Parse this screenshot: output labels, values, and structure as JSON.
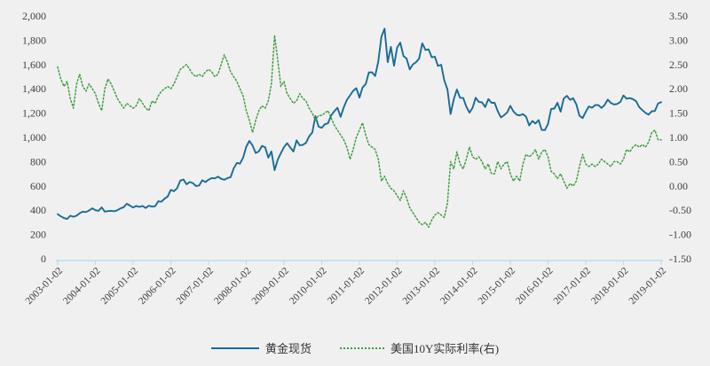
{
  "chart": {
    "background": "#f0f0f0",
    "text_color": "#404040",
    "axis_line_color": "#b5e0f2"
  },
  "legend": {
    "items": [
      {
        "label": "黄金现货",
        "color": "#186c96",
        "style": "solid"
      },
      {
        "label": "美国10Y实际利率(右)",
        "color": "#3f9e3f",
        "style": "dotted"
      }
    ]
  },
  "chart_data": {
    "type": "line",
    "title": "",
    "grid": false,
    "legend_position": "bottom-center",
    "left_axis": {
      "min": 0,
      "max": 2000,
      "step": 200,
      "tick_labels": [
        "0",
        "200",
        "400",
        "600",
        "800",
        "1,000",
        "1,200",
        "1,400",
        "1,600",
        "1,800",
        "2,000"
      ]
    },
    "right_axis": {
      "min": -1.5,
      "max": 3.5,
      "step": 0.5,
      "tick_labels": [
        "-1.50",
        "-1.00",
        "-0.50",
        "0.00",
        "0.50",
        "1.00",
        "1.50",
        "2.00",
        "2.50",
        "3.00",
        "3.50"
      ]
    },
    "x_axis": {
      "tick_labels": [
        "2003-01-02",
        "2004-01-02",
        "2005-01-02",
        "2006-01-02",
        "2007-01-02",
        "2008-01-02",
        "2009-01-02",
        "2010-01-02",
        "2011-01-02",
        "2012-01-02",
        "2013-01-02",
        "2014-01-02",
        "2015-01-02",
        "2016-01-02",
        "2017-01-02",
        "2018-01-02",
        "2019-01-02"
      ],
      "label_rotation_deg": -45
    },
    "sampling": "monthly 2003-01 to 2019-01",
    "series": [
      {
        "name": "黄金现货",
        "axis": "left",
        "color": "#186c96",
        "line": "solid",
        "values": [
          368,
          350,
          335,
          328,
          355,
          346,
          355,
          375,
          388,
          385,
          398,
          415,
          400,
          395,
          423,
          388,
          393,
          395,
          391,
          400,
          415,
          425,
          453,
          438,
          422,
          435,
          428,
          435,
          418,
          437,
          429,
          433,
          473,
          470,
          495,
          513,
          568,
          556,
          582,
          644,
          653,
          613,
          632,
          623,
          599,
          604,
          647,
          632,
          651,
          665,
          662,
          677,
          659,
          650,
          665,
          672,
          743,
          790,
          783,
          834,
          923,
          971,
          933,
          871,
          885,
          930,
          918,
          833,
          884,
          730,
          815,
          870,
          919,
          952,
          916,
          883,
          975,
          934,
          939,
          955,
          1008,
          1040,
          1175,
          1088,
          1078,
          1108,
          1116,
          1180,
          1215,
          1244,
          1169,
          1246,
          1307,
          1346,
          1383,
          1405,
          1327,
          1411,
          1439,
          1535,
          1536,
          1505,
          1628,
          1830,
          1895,
          1620,
          1745,
          1590,
          1740,
          1780,
          1670,
          1650,
          1560,
          1600,
          1620,
          1650,
          1775,
          1720,
          1725,
          1660,
          1664,
          1588,
          1598,
          1469,
          1394,
          1192,
          1314,
          1394,
          1326,
          1324,
          1253,
          1204,
          1244,
          1326,
          1291,
          1288,
          1250,
          1315,
          1285,
          1285,
          1216,
          1164,
          1182,
          1206,
          1260,
          1214,
          1187,
          1180,
          1191,
          1171,
          1098,
          1135,
          1114,
          1142,
          1061,
          1060,
          1111,
          1234,
          1237,
          1285,
          1212,
          1320,
          1342,
          1309,
          1322,
          1272,
          1178,
          1159,
          1210,
          1255,
          1244,
          1266,
          1266,
          1242,
          1267,
          1311,
          1283,
          1271,
          1275,
          1291,
          1345,
          1318,
          1323,
          1315,
          1298,
          1250,
          1224,
          1202,
          1187,
          1215,
          1217,
          1279,
          1290
        ]
      },
      {
        "name": "美国10Y实际利率(右)",
        "axis": "right",
        "color": "#3f9e3f",
        "line": "dotted",
        "values": [
          2.45,
          2.2,
          2.05,
          2.15,
          1.8,
          1.6,
          2.1,
          2.3,
          2.05,
          1.95,
          2.1,
          2.0,
          1.9,
          1.7,
          1.55,
          2.0,
          2.2,
          2.1,
          1.95,
          1.8,
          1.7,
          1.6,
          1.7,
          1.65,
          1.6,
          1.65,
          1.8,
          1.7,
          1.6,
          1.55,
          1.75,
          1.7,
          1.85,
          1.95,
          2.0,
          2.05,
          2.0,
          2.1,
          2.25,
          2.4,
          2.45,
          2.5,
          2.4,
          2.3,
          2.25,
          2.3,
          2.25,
          2.35,
          2.4,
          2.35,
          2.25,
          2.3,
          2.5,
          2.7,
          2.55,
          2.35,
          2.25,
          2.15,
          2.0,
          1.85,
          1.55,
          1.35,
          1.1,
          1.35,
          1.55,
          1.65,
          1.6,
          1.75,
          2.1,
          3.1,
          2.6,
          2.05,
          2.15,
          1.9,
          1.8,
          1.7,
          1.75,
          1.9,
          1.8,
          1.75,
          1.6,
          1.5,
          1.35,
          1.45,
          1.45,
          1.5,
          1.55,
          1.4,
          1.25,
          1.15,
          1.05,
          0.95,
          0.8,
          0.55,
          0.75,
          1.0,
          1.15,
          1.3,
          1.05,
          0.85,
          0.8,
          0.75,
          0.55,
          0.1,
          0.2,
          0.05,
          -0.05,
          -0.1,
          -0.2,
          -0.3,
          -0.1,
          -0.25,
          -0.45,
          -0.55,
          -0.65,
          -0.75,
          -0.8,
          -0.75,
          -0.85,
          -0.7,
          -0.6,
          -0.55,
          -0.6,
          -0.65,
          -0.35,
          0.5,
          0.35,
          0.7,
          0.45,
          0.35,
          0.55,
          0.8,
          0.6,
          0.55,
          0.6,
          0.5,
          0.35,
          0.45,
          0.25,
          0.25,
          0.5,
          0.35,
          0.45,
          0.5,
          0.25,
          0.1,
          0.2,
          0.1,
          0.45,
          0.65,
          0.6,
          0.65,
          0.75,
          0.55,
          0.7,
          0.75,
          0.6,
          0.3,
          0.25,
          0.15,
          0.25,
          0.1,
          -0.05,
          0.05,
          0.0,
          0.1,
          0.4,
          0.65,
          0.45,
          0.4,
          0.45,
          0.4,
          0.45,
          0.55,
          0.5,
          0.45,
          0.4,
          0.5,
          0.5,
          0.45,
          0.55,
          0.75,
          0.7,
          0.8,
          0.85,
          0.8,
          0.85,
          0.8,
          0.9,
          1.1,
          1.15,
          0.95,
          0.95
        ]
      }
    ]
  }
}
